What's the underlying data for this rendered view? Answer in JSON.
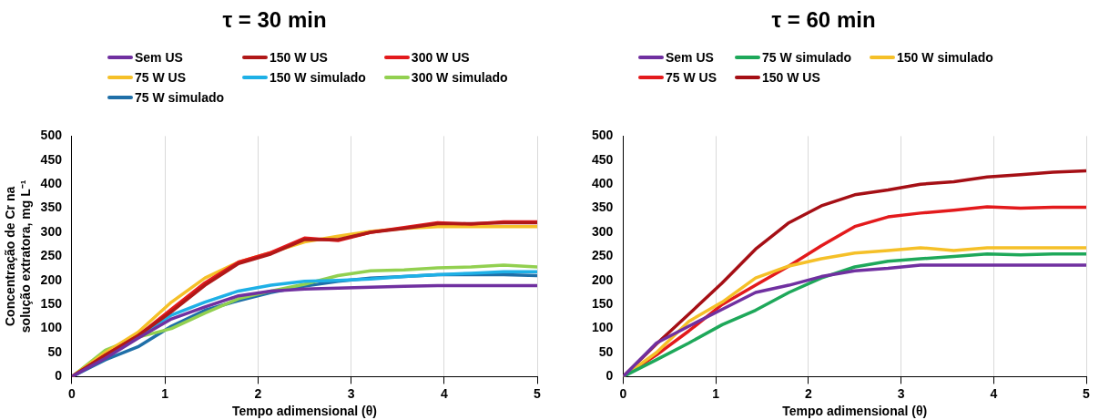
{
  "chart_data": [
    {
      "type": "line",
      "title": "τ = 30 min",
      "xlabel": "Tempo adimensional (θ)",
      "ylabel": "Concentração de Cr na solução extratora, mg L⁻¹",
      "x": [
        0,
        0.36,
        0.71,
        1.07,
        1.43,
        1.79,
        2.14,
        2.5,
        2.86,
        3.21,
        3.57,
        3.93,
        4.29,
        4.64,
        5
      ],
      "xlim": [
        0,
        5
      ],
      "xticks": [
        0,
        1,
        2,
        3,
        4,
        5
      ],
      "ylim": [
        0,
        500
      ],
      "yticks": [
        0,
        50,
        100,
        150,
        200,
        250,
        300,
        350,
        400,
        450,
        500
      ],
      "grid": "x",
      "legend": "top",
      "marker": "none",
      "line_style": "solid",
      "series": [
        {
          "name": "Sem US",
          "color": "#7030a0",
          "values": [
            0,
            38,
            80,
            120,
            145,
            168,
            178,
            182,
            184,
            186,
            188,
            189,
            189,
            189,
            189
          ]
        },
        {
          "name": "150 W US",
          "color": "#b01818",
          "values": [
            0,
            45,
            85,
            135,
            190,
            235,
            255,
            285,
            285,
            300,
            308,
            318,
            318,
            320,
            320
          ]
        },
        {
          "name": "300 W US",
          "color": "#e31a1c",
          "values": [
            0,
            45,
            85,
            140,
            195,
            238,
            258,
            288,
            283,
            300,
            310,
            320,
            317,
            322,
            322
          ]
        },
        {
          "name": "75 W US",
          "color": "#f5c028",
          "values": [
            0,
            50,
            92,
            155,
            205,
            238,
            258,
            280,
            292,
            302,
            308,
            312,
            312,
            312,
            312
          ]
        },
        {
          "name": "150 W simulado",
          "color": "#1eb0e6",
          "values": [
            0,
            40,
            null,
            128,
            155,
            178,
            190,
            198,
            200,
            203,
            208,
            212,
            215,
            218,
            218
          ]
        },
        {
          "name": "300 W simulado",
          "color": "#92d050",
          "values": [
            0,
            55,
            82,
            100,
            132,
            162,
            178,
            192,
            210,
            220,
            222,
            226,
            228,
            232,
            228
          ]
        },
        {
          "name": "75 W simulado",
          "color": "#1f6fa8",
          "values": [
            0,
            35,
            62,
            105,
            138,
            158,
            175,
            188,
            198,
            205,
            208,
            212,
            212,
            212,
            210
          ]
        }
      ]
    },
    {
      "type": "line",
      "title": "τ = 60 min",
      "xlabel": "Tempo adimensional (θ)",
      "x": [
        0,
        0.36,
        0.71,
        1.07,
        1.43,
        1.79,
        2.14,
        2.5,
        2.86,
        3.21,
        3.57,
        3.93,
        4.29,
        4.64,
        5
      ],
      "xlim": [
        0,
        5
      ],
      "xticks": [
        0,
        1,
        2,
        3,
        4,
        5
      ],
      "ylim": [
        0,
        500
      ],
      "yticks": [
        0,
        50,
        100,
        150,
        200,
        250,
        300,
        350,
        400,
        450,
        500
      ],
      "grid": "x",
      "legend": "top",
      "marker": "none",
      "line_style": "solid",
      "series": [
        {
          "name": "Sem US",
          "color": "#7030a0",
          "values": [
            0,
            70,
            105,
            140,
            175,
            190,
            208,
            220,
            225,
            232,
            232,
            232,
            232,
            232,
            232
          ]
        },
        {
          "name": "75 W simulado",
          "color": "#1ea85a",
          "values": [
            0,
            35,
            70,
            108,
            138,
            175,
            205,
            228,
            240,
            245,
            250,
            255,
            253,
            255,
            255
          ]
        },
        {
          "name": "150 W simulado",
          "color": "#f5c028",
          "values": [
            0,
            50,
            115,
            155,
            205,
            230,
            245,
            257,
            262,
            268,
            262,
            268,
            268,
            268,
            268
          ]
        },
        {
          "name": "75 W US",
          "color": "#e31a1c",
          "values": [
            0,
            45,
            95,
            150,
            190,
            230,
            272,
            312,
            332,
            340,
            346,
            353,
            350,
            352,
            352
          ]
        },
        {
          "name": "150 W US",
          "color": "#a50f15",
          "values": [
            0,
            68,
            130,
            195,
            265,
            320,
            355,
            378,
            388,
            400,
            405,
            415,
            420,
            425,
            428
          ]
        }
      ]
    }
  ]
}
